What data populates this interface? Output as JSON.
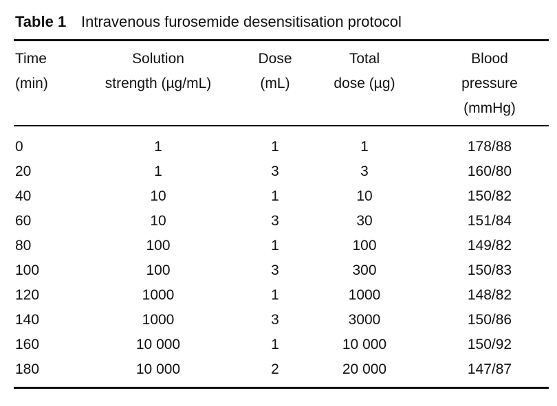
{
  "table": {
    "label": "Table 1",
    "title": "Intravenous furosemide desensitisation protocol",
    "header": [
      [
        "Time",
        "(min)"
      ],
      [
        "Solution",
        "strength (µg/mL)"
      ],
      [
        "Dose",
        "(mL)"
      ],
      [
        "Total",
        "dose (µg)"
      ],
      [
        "Blood",
        "pressure",
        "(mmHg)"
      ]
    ],
    "rows": [
      [
        "0",
        "1",
        "1",
        "1",
        "178/88"
      ],
      [
        "20",
        "1",
        "3",
        "3",
        "160/80"
      ],
      [
        "40",
        "10",
        "1",
        "10",
        "150/82"
      ],
      [
        "60",
        "10",
        "3",
        "30",
        "151/84"
      ],
      [
        "80",
        "100",
        "1",
        "100",
        "149/82"
      ],
      [
        "100",
        "100",
        "3",
        "300",
        "150/83"
      ],
      [
        "120",
        "1000",
        "1",
        "1000",
        "148/82"
      ],
      [
        "140",
        "1000",
        "3",
        "3000",
        "150/86"
      ],
      [
        "160",
        "10 000",
        "1",
        "10 000",
        "150/92"
      ],
      [
        "180",
        "10 000",
        "2",
        "20 000",
        "147/87"
      ]
    ]
  }
}
